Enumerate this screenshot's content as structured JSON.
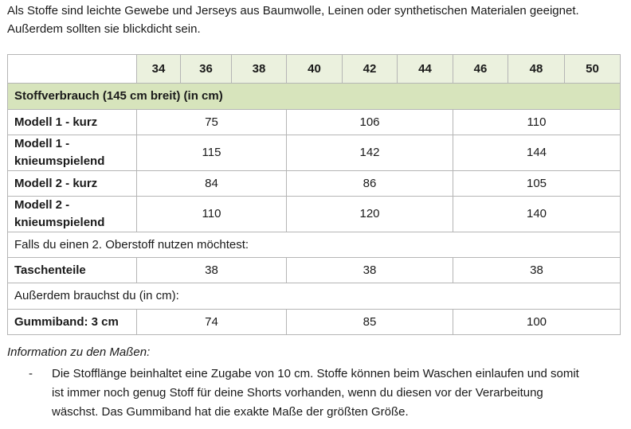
{
  "intro": "Als Stoffe sind leichte Gewebe und Jerseys aus Baumwolle, Leinen oder synthetischen Materialen geeignet. Außerdem sollten sie blickdicht sein.",
  "table": {
    "sizes": [
      "34",
      "36",
      "38",
      "40",
      "42",
      "44",
      "46",
      "48",
      "50"
    ],
    "section_fabric": "Stoffverbrauch (145 cm breit) (in cm)",
    "rows_fabric": [
      {
        "label": "Modell 1 - kurz",
        "values": [
          "75",
          "106",
          "110"
        ]
      },
      {
        "label": "Modell 1 - knieumspielend",
        "values": [
          "115",
          "142",
          "144"
        ]
      },
      {
        "label": "Modell 2 - kurz",
        "values": [
          "84",
          "86",
          "105"
        ]
      },
      {
        "label": "Modell 2 - knieumspielend",
        "values": [
          "110",
          "120",
          "140"
        ]
      }
    ],
    "note_second_fabric": "Falls du einen 2. Oberstoff nutzen möchtest:",
    "row_pockets": {
      "label": "Taschenteile",
      "values": [
        "38",
        "38",
        "38"
      ]
    },
    "note_also": "Außerdem brauchst du (in cm):",
    "row_elastic": {
      "label": "Gummiband: 3 cm",
      "values": [
        "74",
        "85",
        "100"
      ]
    }
  },
  "info": {
    "title": "Information zu den Maßen:",
    "bullet": "-",
    "text": "Die Stofflänge beinhaltet eine Zugabe von 10 cm. Stoffe können beim Waschen einlaufen und somit ist immer noch genug Stoff für deine Shorts vorhanden, wenn du diesen vor der Verarbeitung wäschst. Das Gummiband hat die exakte Maße der größten Größe."
  }
}
